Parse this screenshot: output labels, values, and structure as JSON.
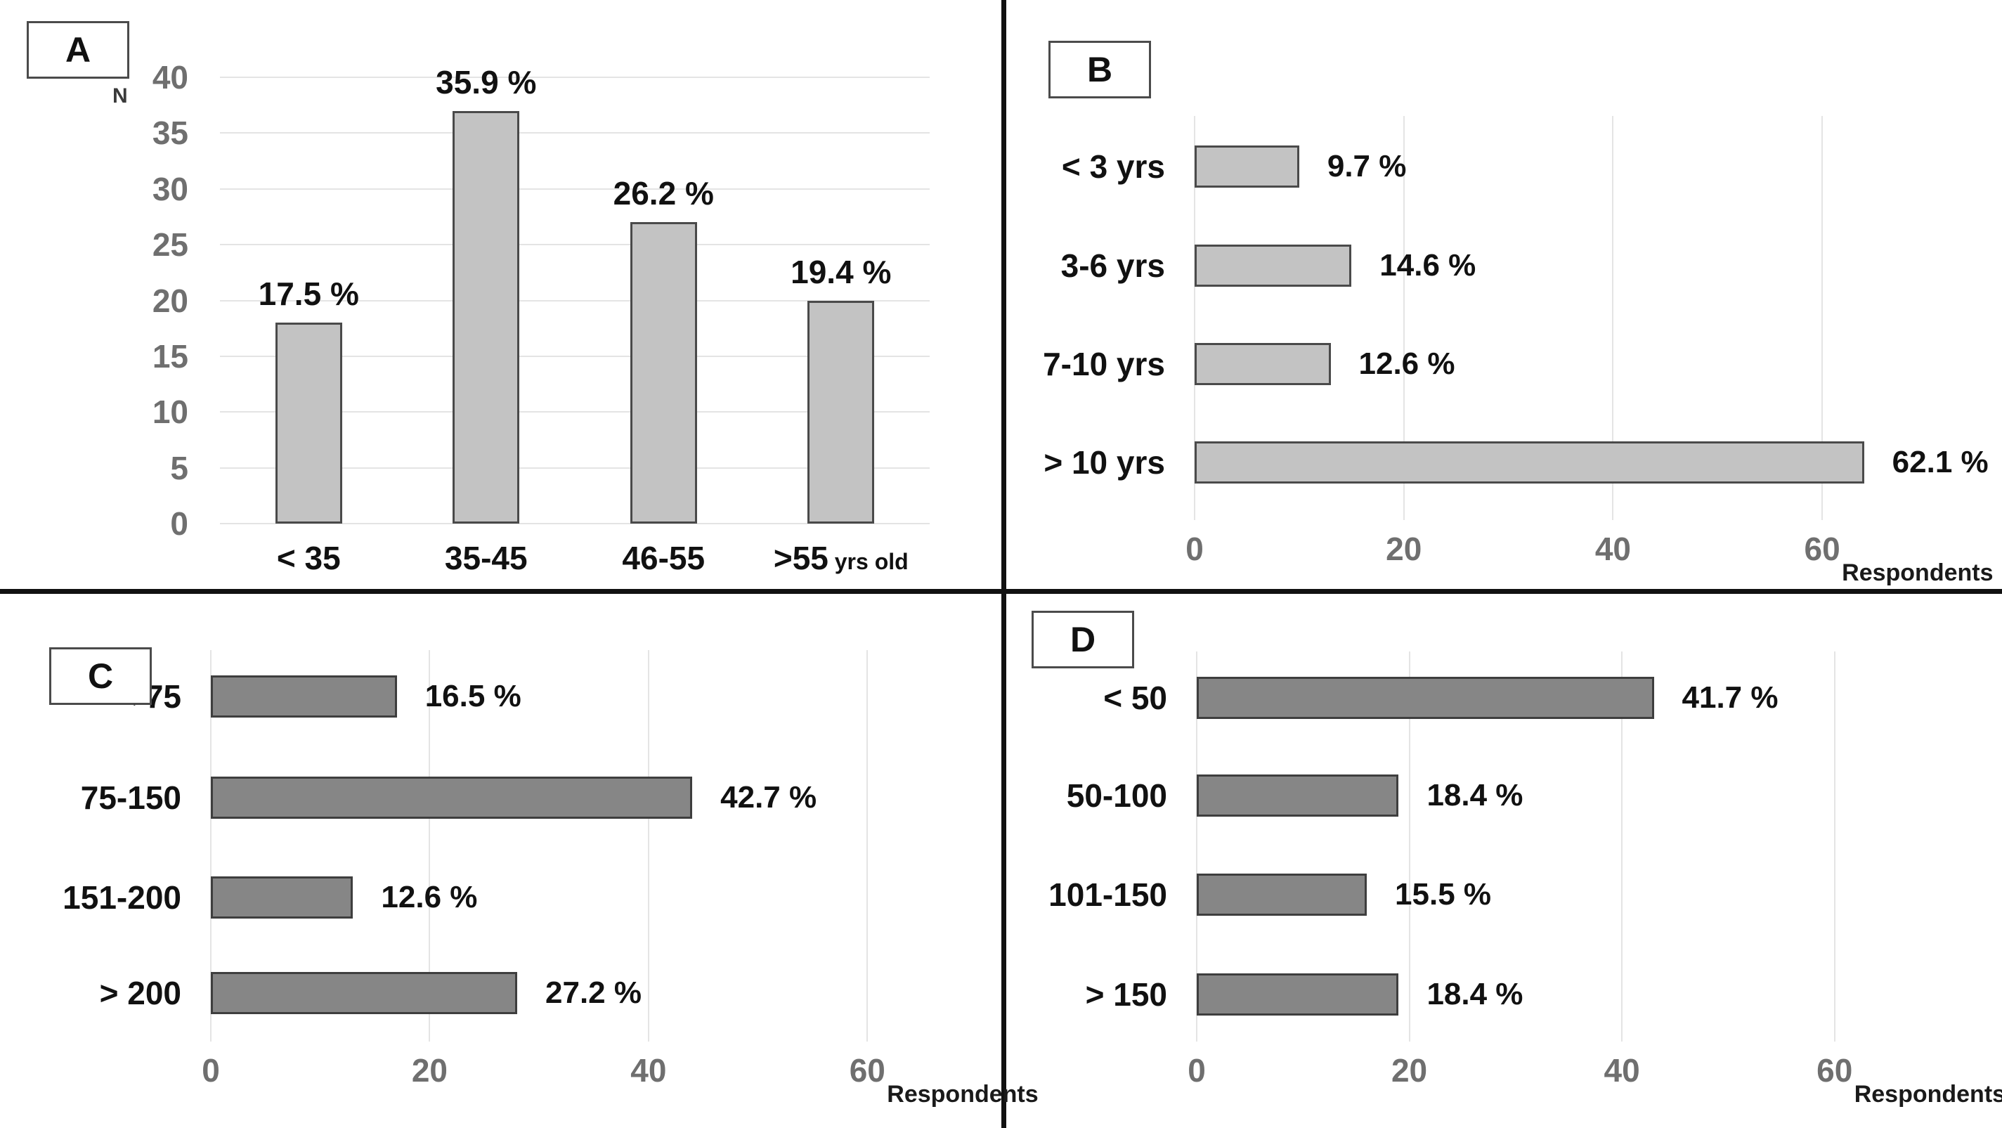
{
  "figure": {
    "colors": {
      "light_bar": "#c3c3c3",
      "light_bar_border": "#4a4a4a",
      "dark_bar": "#868686",
      "dark_bar_border": "#3e3e3e",
      "gridline": "#e4e4e4",
      "tick_text": "#6f6f6f",
      "label_text": "#111111",
      "divider": "#111111"
    }
  },
  "chart_data": [
    {
      "panel": "A",
      "type": "bar",
      "orientation": "vertical",
      "bar_style": "light",
      "categories": [
        "< 35",
        "35-45",
        "46-55",
        ">55"
      ],
      "category_suffix": "yrs old",
      "values": [
        18,
        37,
        27,
        20
      ],
      "percent_labels": [
        "17.5 %",
        "35.9 %",
        "26.2 %",
        "19.4 %"
      ],
      "ylabel": "N",
      "ylim": [
        0,
        40
      ],
      "yticks": [
        0,
        5,
        10,
        15,
        20,
        25,
        30,
        35,
        40
      ],
      "grid": true
    },
    {
      "panel": "B",
      "type": "bar",
      "orientation": "horizontal",
      "bar_style": "light",
      "categories": [
        "< 3 yrs",
        "3-6 yrs",
        "7-10 yrs",
        "> 10 yrs"
      ],
      "values": [
        10,
        15,
        13,
        64
      ],
      "percent_labels": [
        "9.7 %",
        "14.6 %",
        "12.6 %",
        "62.1 %"
      ],
      "xlabel": "Respondents",
      "xlim": [
        0,
        70
      ],
      "xticks": [
        0,
        20,
        40,
        60
      ],
      "grid": true
    },
    {
      "panel": "C",
      "type": "bar",
      "orientation": "horizontal",
      "bar_style": "dark",
      "categories": [
        "< 75",
        "75-150",
        "151-200",
        "> 200"
      ],
      "values": [
        17,
        44,
        13,
        28
      ],
      "percent_labels": [
        "16.5 %",
        "42.7 %",
        "12.6 %",
        "27.2 %"
      ],
      "xlabel": "Respondents",
      "xlim": [
        0,
        70
      ],
      "xticks": [
        0,
        20,
        40,
        60
      ],
      "grid": true
    },
    {
      "panel": "D",
      "type": "bar",
      "orientation": "horizontal",
      "bar_style": "dark",
      "categories": [
        "< 50",
        "50-100",
        "101-150",
        "> 150"
      ],
      "values": [
        43,
        19,
        16,
        19
      ],
      "percent_labels": [
        "41.7 %",
        "18.4 %",
        "15.5 %",
        "18.4 %"
      ],
      "xlabel": "Respondents",
      "xlim": [
        0,
        70
      ],
      "xticks": [
        0,
        20,
        40,
        60
      ],
      "grid": true
    }
  ]
}
